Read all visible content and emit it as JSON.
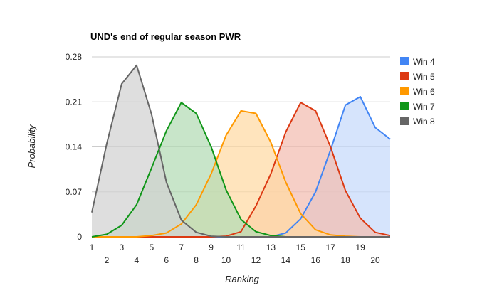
{
  "chart_data": {
    "type": "area",
    "title": "UND's end of regular season PWR",
    "xlabel": "Ranking",
    "ylabel": "Probability",
    "x": [
      1,
      2,
      3,
      4,
      5,
      6,
      7,
      8,
      9,
      10,
      11,
      12,
      13,
      14,
      15,
      16,
      17,
      18,
      19,
      20,
      21
    ],
    "x_tick_labels_top": [
      "1",
      "3",
      "5",
      "7",
      "9",
      "11",
      "13",
      "15",
      "17",
      "19"
    ],
    "x_tick_labels_bottom": [
      "2",
      "4",
      "6",
      "8",
      "10",
      "12",
      "14",
      "16",
      "18",
      "20"
    ],
    "y_ticks": [
      0,
      0.07,
      0.14,
      0.21,
      0.28
    ],
    "y_tick_labels": [
      "0",
      "0.07",
      "0.14",
      "0.21",
      "0.28"
    ],
    "ylim": [
      0,
      0.28
    ],
    "xlim": [
      1,
      21
    ],
    "grid": true,
    "legend_position": "right",
    "series": [
      {
        "name": "Win 4",
        "color": "#4285f4",
        "fill": "#c6d9fb",
        "values": [
          0,
          0,
          0,
          0,
          0,
          0,
          0,
          0,
          0,
          0,
          0,
          0,
          0,
          0.006,
          0.028,
          0.07,
          0.135,
          0.205,
          0.218,
          0.17,
          0.152
        ]
      },
      {
        "name": "Win 5",
        "color": "#dc3912",
        "fill": "#f2bdb0",
        "values": [
          0,
          0,
          0,
          0,
          0,
          0,
          0,
          0,
          0,
          0.001,
          0.008,
          0.048,
          0.098,
          0.163,
          0.209,
          0.196,
          0.14,
          0.072,
          0.029,
          0.007,
          0.002
        ]
      },
      {
        "name": "Win 6",
        "color": "#ff9900",
        "fill": "#ffd9a3",
        "values": [
          0,
          0,
          0,
          0,
          0.002,
          0.006,
          0.02,
          0.05,
          0.098,
          0.158,
          0.196,
          0.192,
          0.147,
          0.085,
          0.036,
          0.011,
          0.003,
          0.001,
          0,
          0,
          0
        ]
      },
      {
        "name": "Win 7",
        "color": "#109618",
        "fill": "#b3dbb4",
        "values": [
          0,
          0.004,
          0.018,
          0.05,
          0.107,
          0.165,
          0.209,
          0.192,
          0.14,
          0.073,
          0.027,
          0.008,
          0.002,
          0,
          0,
          0,
          0,
          0,
          0,
          0,
          0
        ]
      },
      {
        "name": "Win 8",
        "color": "#666666",
        "fill": "#d1d1d1",
        "values": [
          0.038,
          0.145,
          0.238,
          0.267,
          0.191,
          0.085,
          0.026,
          0.007,
          0.001,
          0,
          0,
          0,
          0,
          0,
          0,
          0,
          0,
          0,
          0,
          0,
          0
        ]
      }
    ]
  }
}
